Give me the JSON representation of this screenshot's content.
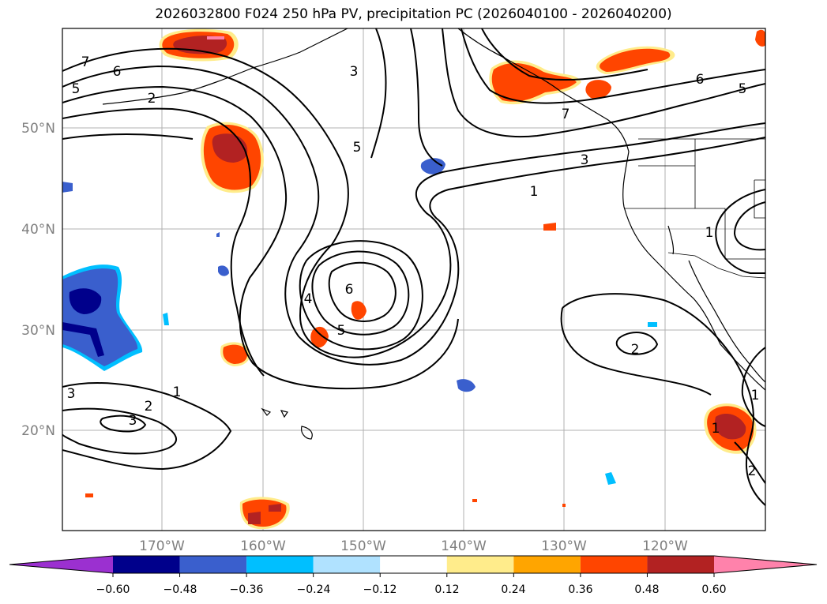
{
  "title": "2026032800 F024 250 hPa PV, precipitation PC (2026040100 - 2026040200)",
  "axes": {
    "latitude_labels": [
      "50°N",
      "40°N",
      "30°N",
      "20°N"
    ],
    "longitude_labels": [
      "170°W",
      "160°W",
      "150°W",
      "140°W",
      "130°W",
      "120°W"
    ]
  },
  "colorbar": {
    "tick_labels": [
      "−0.60",
      "−0.48",
      "−0.36",
      "−0.24",
      "−0.12",
      "0.12",
      "0.24",
      "0.36",
      "0.48",
      "0.60"
    ],
    "colors": [
      "#9b30d0",
      "#00008b",
      "#3a5fcd",
      "#00bfff",
      "#b0e2ff",
      "#ffffff",
      "#ffec8b",
      "#ffa500",
      "#ff4500",
      "#b22222",
      "#ff82ab"
    ]
  },
  "pv_contour_labels": [
    "7",
    "6",
    "5",
    "2",
    "3",
    "5",
    "6",
    "5",
    "7",
    "3",
    "1",
    "1",
    "4",
    "6",
    "5",
    "2",
    "1",
    "2",
    "3",
    "3",
    "1",
    "2",
    "1"
  ],
  "colors": {
    "precip_positive_strong": "#b22222",
    "precip_positive": "#ff4500",
    "precip_positive_weak": "#ffa500",
    "precip_negative_strong": "#00008b",
    "precip_negative": "#3a5fcd",
    "precip_negative_weak": "#00bfff"
  }
}
